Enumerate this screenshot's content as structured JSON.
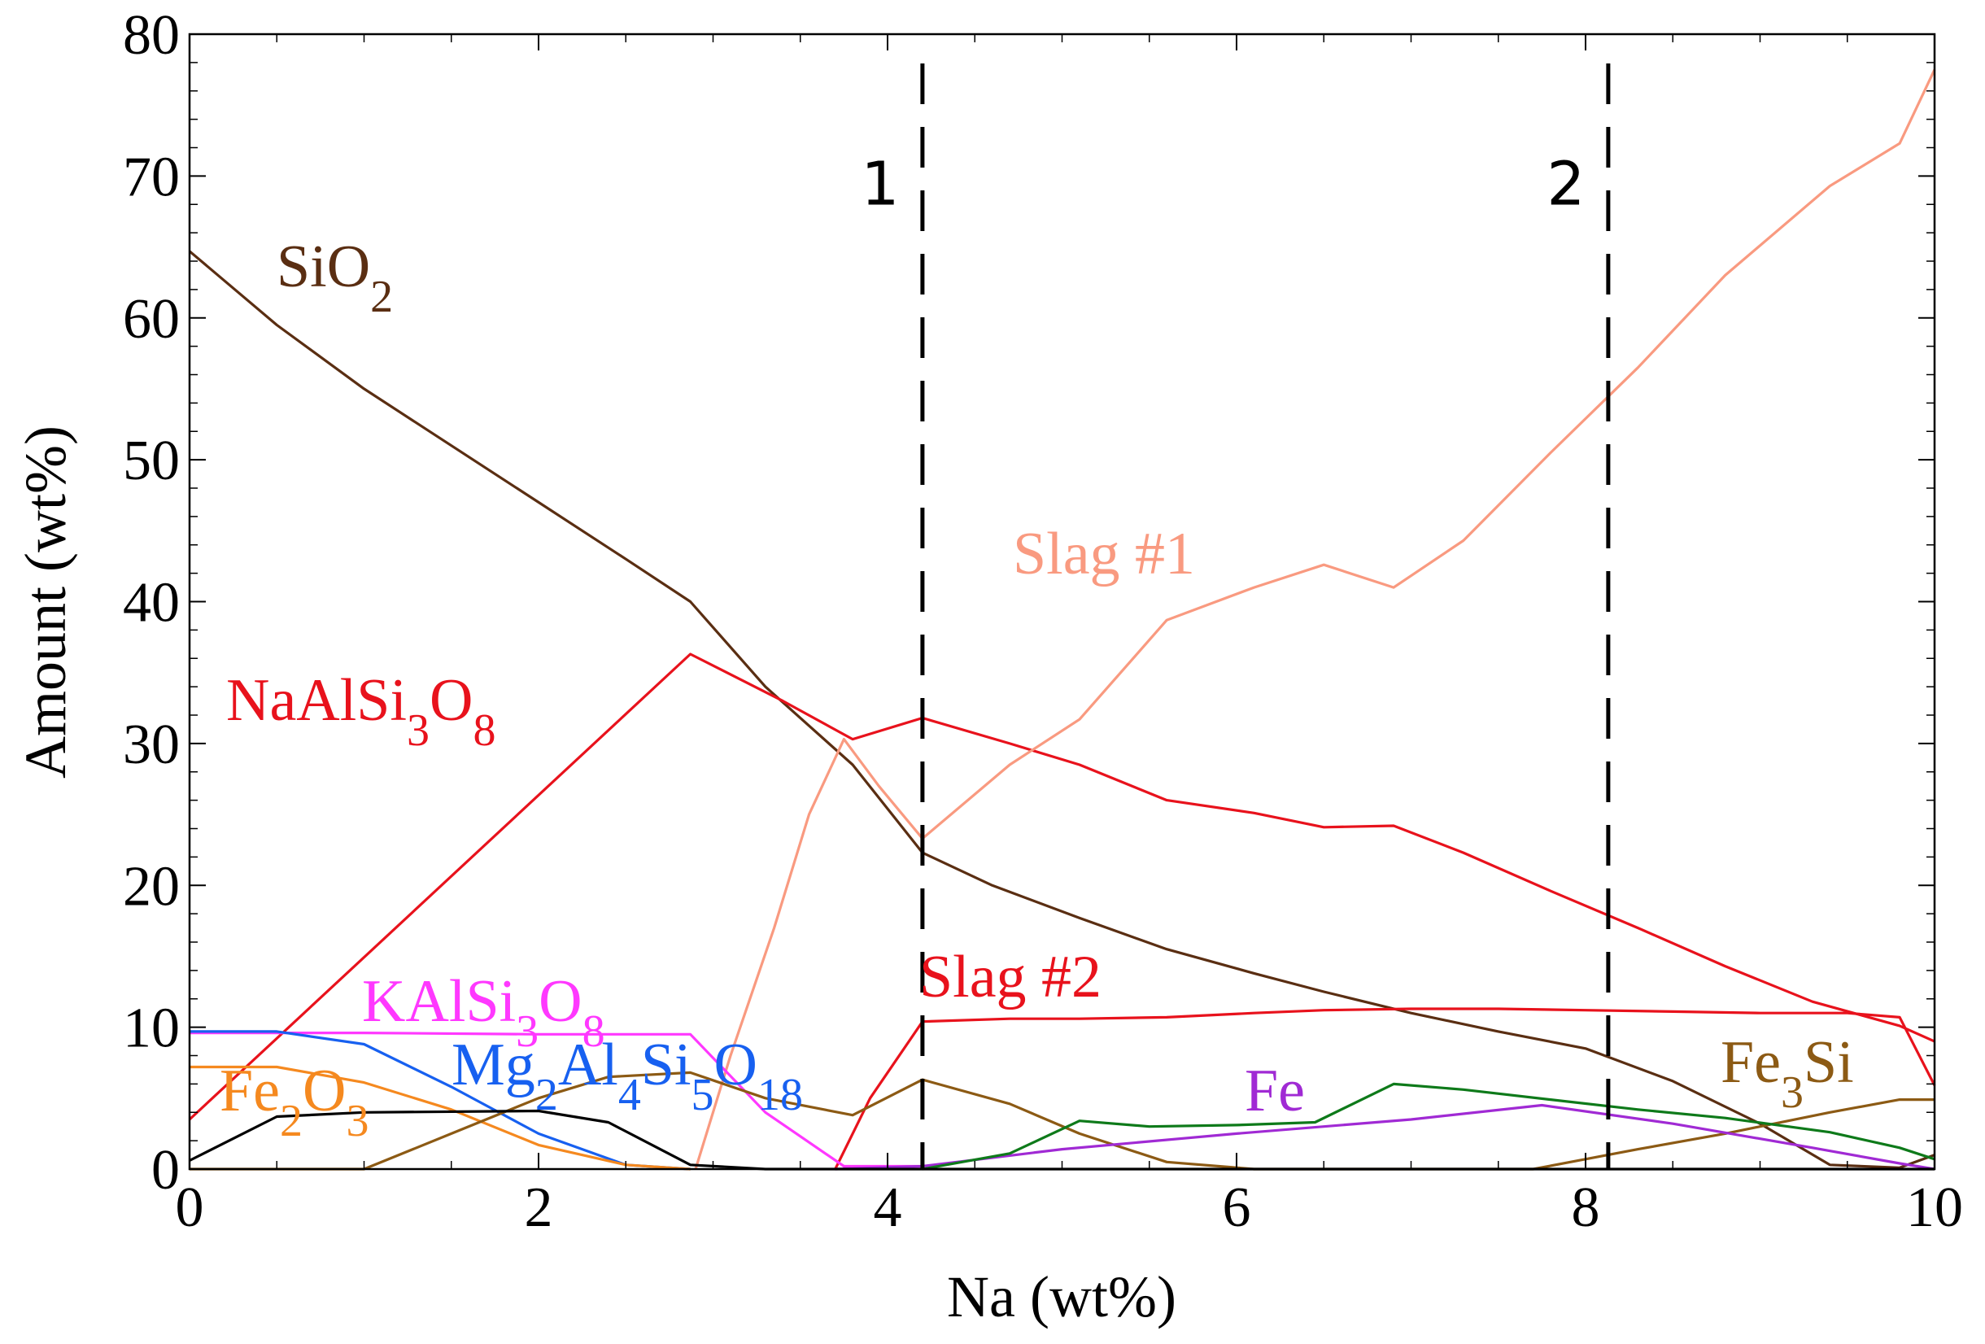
{
  "chart_data": {
    "type": "line",
    "title": "",
    "xlabel": "Na (wt%)",
    "ylabel": "Amount (wt%)",
    "xlim": [
      0,
      10
    ],
    "ylim": [
      0,
      80
    ],
    "xticks": [
      0,
      2,
      4,
      6,
      8,
      10
    ],
    "yticks": [
      0,
      10,
      20,
      30,
      40,
      50,
      60,
      70,
      80
    ],
    "xtick_labels": [
      "0",
      "2",
      "4",
      "6",
      "8",
      "10"
    ],
    "ytick_labels": [
      "0",
      "10",
      "20",
      "30",
      "40",
      "50",
      "60",
      "70",
      "80"
    ],
    "grid": false,
    "vertical_markers": [
      {
        "x": 4.2,
        "label": "1"
      },
      {
        "x": 8.13,
        "label": "2"
      }
    ],
    "series": [
      {
        "name": "SiO2",
        "label": "SiO",
        "sub": "2",
        "color": "#5a2e12",
        "x": [
          0,
          0.5,
          1,
          1.5,
          2,
          2.5,
          2.87,
          3.3,
          3.8,
          4.2,
          4.6,
          5.1,
          5.6,
          6.1,
          6.5,
          7.0,
          7.5,
          8.0,
          8.5,
          9.0,
          9.4,
          9.8,
          10
        ],
        "y": [
          64.7,
          59.5,
          55,
          51,
          47,
          43,
          40,
          34,
          28.5,
          22.3,
          20,
          17.7,
          15.5,
          13.8,
          12.5,
          11,
          9.7,
          8.5,
          6.2,
          3.2,
          0.3,
          0.1,
          1
        ]
      },
      {
        "name": "NaAlSi3O8",
        "label": "NaAlSi",
        "sub": "3",
        "label2": "O",
        "sub2": "8",
        "color": "#e8121c",
        "x": [
          0,
          2.87,
          3.4,
          3.8,
          4.2,
          4.7,
          5.1,
          5.6,
          6.1,
          6.5,
          6.9,
          7.3,
          7.8,
          8.3,
          8.8,
          9.3,
          9.8,
          10
        ],
        "y": [
          3.5,
          36.3,
          33,
          30.3,
          31.8,
          30,
          28.5,
          26,
          25.1,
          24.1,
          24.2,
          22.3,
          19.6,
          17,
          14.3,
          11.8,
          10.1,
          9
        ]
      },
      {
        "name": "Slag #1",
        "label": "Slag #1",
        "color": "#f99a80",
        "x": [
          2.9,
          3.1,
          3.35,
          3.55,
          3.75,
          3.95,
          4.2,
          4.7,
          5.1,
          5.6,
          6.1,
          6.5,
          6.9,
          7.3,
          7.8,
          8.3,
          8.8,
          9.4,
          9.8,
          10
        ],
        "y": [
          0,
          8,
          17,
          25,
          30.3,
          27,
          23.3,
          28.5,
          31.7,
          38.7,
          41,
          42.6,
          41,
          44.3,
          50.5,
          56.5,
          63,
          69.3,
          72.3,
          77.5
        ]
      },
      {
        "name": "Slag #2",
        "label": "Slag #2",
        "color": "#e8121c",
        "x": [
          3.7,
          3.9,
          4.2,
          4.7,
          5.1,
          5.6,
          6.1,
          6.5,
          7.0,
          7.5,
          8.0,
          8.5,
          9.0,
          9.5,
          9.8,
          10
        ],
        "y": [
          0,
          5,
          10.4,
          10.6,
          10.6,
          10.7,
          11,
          11.2,
          11.3,
          11.3,
          11.2,
          11.1,
          11,
          11,
          10.7,
          5.9
        ]
      },
      {
        "name": "KAlSi3O8",
        "label": "KAlSi",
        "sub": "3",
        "label2": "O",
        "sub2": "8",
        "color": "#ff38ff",
        "x": [
          0,
          1,
          2,
          2.87,
          3.3,
          3.75,
          4.2
        ],
        "y": [
          9.6,
          9.6,
          9.5,
          9.5,
          4,
          0.2,
          0.2
        ]
      },
      {
        "name": "Mg2Al4Si5O18",
        "label": "Mg",
        "sub": "2",
        "label2": "Al",
        "sub2": "4",
        "label3": "Si",
        "sub3": "5",
        "label4": "O",
        "sub4": "18",
        "color": "#1760f0",
        "x": [
          0,
          0.5,
          1,
          1.5,
          2,
          2.5,
          2.87
        ],
        "y": [
          9.7,
          9.7,
          8.8,
          5.8,
          2.5,
          0.3,
          0
        ]
      },
      {
        "name": "Fe2O3",
        "label": "Fe",
        "sub": "2",
        "label2": "O",
        "sub2": "3",
        "color": "#f5891f",
        "x": [
          0,
          0.5,
          1,
          1.5,
          2,
          2.5,
          2.87
        ],
        "y": [
          7.2,
          7.2,
          6.1,
          4.2,
          1.7,
          0.3,
          0
        ]
      },
      {
        "name": "Fe3Si",
        "label": "Fe",
        "sub": "3",
        "label2": "Si",
        "color": "#8c5a14",
        "x": [
          0,
          1,
          1.5,
          2,
          2.4,
          2.87,
          3.3,
          3.8,
          4.2,
          4.7,
          5.1,
          5.6,
          6.1,
          7.0,
          7.7,
          8.3,
          8.8,
          9.4,
          9.8,
          10
        ],
        "y": [
          0,
          0,
          2.5,
          5,
          6.5,
          6.8,
          5,
          3.8,
          6.3,
          4.6,
          2.5,
          0.5,
          0,
          0,
          0,
          1.4,
          2.5,
          4,
          4.9,
          4.9
        ]
      },
      {
        "name": "Fe",
        "label": "Fe",
        "color": "#a02ad4",
        "x": [
          3.7,
          4.2,
          5.0,
          6.0,
          7.0,
          7.75,
          8.5,
          9.3,
          9.8,
          10
        ],
        "y": [
          0,
          0.2,
          1.4,
          2.5,
          3.5,
          4.5,
          3.2,
          1.5,
          0.4,
          0
        ]
      },
      {
        "name": "green",
        "label": "",
        "color": "#0e7a1a",
        "x": [
          4.2,
          4.7,
          5.1,
          5.5,
          6.0,
          6.45,
          6.9,
          7.3,
          7.8,
          8.3,
          8.8,
          9.4,
          9.8,
          10
        ],
        "y": [
          0,
          1.1,
          3.4,
          3.0,
          3.1,
          3.3,
          6,
          5.6,
          4.9,
          4.2,
          3.6,
          2.6,
          1.5,
          0.7
        ]
      },
      {
        "name": "black",
        "label": "",
        "color": "#000000",
        "x": [
          0,
          0.5,
          1,
          2,
          2.4,
          2.87,
          3.3,
          10
        ],
        "y": [
          0.6,
          3.7,
          4,
          4.1,
          3.3,
          0.3,
          0,
          0
        ]
      }
    ]
  }
}
